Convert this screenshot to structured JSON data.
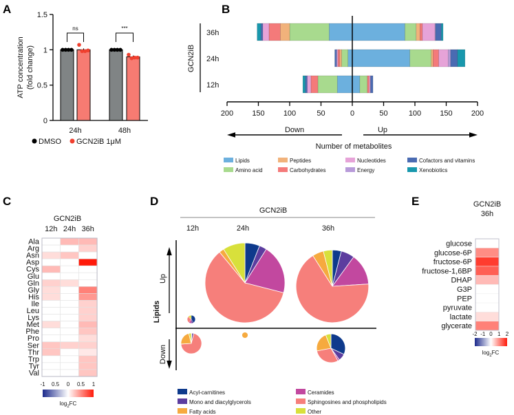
{
  "chart_data": [
    {
      "panel": "A",
      "type": "bar",
      "ylabel": [
        "ATP concentration",
        "(fold change)"
      ],
      "ylim": [
        0,
        1.5
      ],
      "yticks": [
        "0",
        "0.5",
        "1",
        "1.5"
      ],
      "categories": [
        "24h",
        "48h"
      ],
      "series": [
        {
          "name": "DMSO",
          "color": "#808485",
          "dot_color": "#000000",
          "values": [
            1.0,
            1.0
          ],
          "points": [
            [
              1,
              1,
              1,
              1
            ],
            [
              1,
              1,
              1,
              1
            ]
          ]
        },
        {
          "name": "GCN2iB 1μM",
          "color": "#f77b72",
          "dot_color": "#f0402f",
          "values": [
            1.0,
            0.9
          ],
          "points": [
            [
              1.07,
              0.98,
              0.98,
              0.99
            ],
            [
              0.93,
              0.88,
              0.89,
              0.89
            ]
          ]
        }
      ],
      "significance": [
        "ns",
        "***"
      ],
      "legend_placement": "bottom"
    },
    {
      "panel": "B",
      "type": "bar",
      "orientation": "horizontal-stacked-diverging",
      "group_label": "GCN2iB",
      "categories": [
        "36h",
        "24h",
        "12h"
      ],
      "xlim": [
        -200,
        200
      ],
      "xticks": [
        "200",
        "150",
        "100",
        "50",
        "0",
        "50",
        "100",
        "150",
        "200"
      ],
      "xlabel": "Number of metabolites",
      "direction_labels": {
        "down": "Down",
        "up": "Up"
      },
      "classes": [
        {
          "name": "Lipids",
          "color": "#6cb0de"
        },
        {
          "name": "Amino acid",
          "color": "#a8da8e"
        },
        {
          "name": "Peptides",
          "color": "#f1b27b"
        },
        {
          "name": "Carbohydrates",
          "color": "#f47a7a"
        },
        {
          "name": "Nucleotides",
          "color": "#e6a3d8"
        },
        {
          "name": "Energy",
          "color": "#b89bd9"
        },
        {
          "name": "Cofactors and vitamins",
          "color": "#4a6bb2"
        },
        {
          "name": "Xenobiotics",
          "color": "#1898ad"
        }
      ],
      "down": {
        "36h": [
          37,
          63,
          15,
          18,
          10,
          0,
          3,
          6
        ],
        "24h": [
          7,
          10,
          3,
          3,
          2,
          0,
          3,
          0
        ],
        "12h": [
          24,
          31,
          0,
          11,
          6,
          0,
          3,
          4
        ]
      },
      "up": {
        "36h": [
          84,
          18,
          6,
          4,
          20,
          1,
          9,
          3
        ],
        "24h": [
          92,
          34,
          3,
          9,
          15,
          4,
          11,
          12
        ],
        "12h": [
          12,
          12,
          0,
          3,
          2,
          0,
          4,
          0
        ]
      },
      "legend_placement": "bottom"
    },
    {
      "panel": "C",
      "type": "heatmap",
      "title": "GCN2iB",
      "columns": [
        "12h",
        "24h",
        "36h"
      ],
      "rows": [
        "Ala",
        "Arg",
        "Asn",
        "Asp",
        "Cys",
        "Glu",
        "Gln",
        "Gly",
        "His",
        "Ile",
        "Leu",
        "Lys",
        "Met",
        "Phe",
        "Pro",
        "Ser",
        "Thr",
        "Trp",
        "Tyr",
        "Val"
      ],
      "values": [
        [
          0,
          -0.3,
          -0.3
        ],
        [
          0,
          0,
          -0.2
        ],
        [
          -0.15,
          -0.25,
          0
        ],
        [
          0,
          0,
          1
        ],
        [
          -0.3,
          0,
          0
        ],
        [
          0,
          0,
          0
        ],
        [
          -0.2,
          -0.15,
          0
        ],
        [
          -0.15,
          0,
          -0.55
        ],
        [
          -0.15,
          0,
          -0.45
        ],
        [
          0,
          0,
          -0.2
        ],
        [
          0,
          0,
          -0.2
        ],
        [
          0,
          0,
          -0.2
        ],
        [
          -0.15,
          0,
          -0.3
        ],
        [
          0,
          0,
          -0.25
        ],
        [
          0,
          0,
          -0.15
        ],
        [
          -0.25,
          -0.2,
          -0.2
        ],
        [
          -0.25,
          0,
          -0.1
        ],
        [
          0,
          0,
          -0.25
        ],
        [
          0,
          0,
          -0.25
        ],
        [
          0,
          0,
          -0.25
        ]
      ],
      "scale": {
        "min": -1,
        "max": 1,
        "ticks": [
          "-1",
          "0.5",
          "0",
          "0.5",
          "1"
        ],
        "label": "log",
        "label_sub": "2",
        "label_tail": "FC",
        "low_color": "#1c2a8c",
        "high_color": "#ff1a0a"
      }
    },
    {
      "panel": "D",
      "type": "pie",
      "title": "GCN2iB",
      "columns": [
        "12h",
        "24h",
        "36h"
      ],
      "row_label": "Lipids",
      "direction_labels": {
        "up": "Up",
        "down": "Down"
      },
      "classes": [
        {
          "name": "Acyl-carnitines",
          "color": "#0e3a8c"
        },
        {
          "name": "Mono and diacylglycerols",
          "color": "#5c3d9f"
        },
        {
          "name": "Ceramides",
          "color": "#c2489f"
        },
        {
          "name": "Sphingosines and phospholipids",
          "color": "#f67f7b"
        },
        {
          "name": "Fatty acids",
          "color": "#f6aa3f"
        },
        {
          "name": "Other",
          "color": "#d8e03b"
        }
      ],
      "pies": [
        {
          "time": "12h",
          "direction": "up",
          "relative_size": 0.1,
          "fractions": [
            0.4,
            0.1,
            0.1,
            0.25,
            0.05,
            0.1
          ]
        },
        {
          "time": "24h",
          "direction": "up",
          "relative_size": 1.0,
          "fractions": [
            0.06,
            0.03,
            0.2,
            0.6,
            0.02,
            0.09
          ]
        },
        {
          "time": "36h",
          "direction": "up",
          "relative_size": 0.91,
          "fractions": [
            0.04,
            0.06,
            0.14,
            0.67,
            0.05,
            0.04
          ]
        },
        {
          "time": "12h",
          "direction": "down",
          "relative_size": 0.26,
          "fractions": [
            0.01,
            0.03,
            0,
            0.7,
            0.22,
            0.04
          ]
        },
        {
          "time": "24h",
          "direction": "down",
          "relative_size": 0.07,
          "fractions": [
            0,
            0,
            0,
            0,
            1,
            0
          ]
        },
        {
          "time": "36h",
          "direction": "down",
          "relative_size": 0.36,
          "fractions": [
            0.32,
            0.08,
            0.02,
            0.3,
            0.22,
            0.06
          ]
        }
      ],
      "legend_placement": "bottom"
    },
    {
      "panel": "E",
      "type": "heatmap",
      "title": [
        "GCN2iB",
        "36h"
      ],
      "rows": [
        "glucose",
        "glucose-6P",
        "fructose-6P",
        "fructose-1,6BP",
        "DHAP",
        "G3P",
        "PEP",
        "pyruvate",
        "lactate",
        "glycerate"
      ],
      "values": [
        0,
        -1.0,
        -1.7,
        -1.4,
        -0.6,
        0,
        0,
        0,
        -0.3,
        -1.1
      ],
      "scale": {
        "min": -2,
        "max": 2,
        "ticks": [
          "-2",
          "-1",
          "0",
          "1",
          "2"
        ],
        "label": "log",
        "label_sub": "2",
        "label_tail": "FC",
        "low_color": "#1a3fa8",
        "high_color": "#ff1a0a"
      }
    }
  ],
  "panel_labels": [
    "A",
    "B",
    "C",
    "D",
    "E"
  ]
}
